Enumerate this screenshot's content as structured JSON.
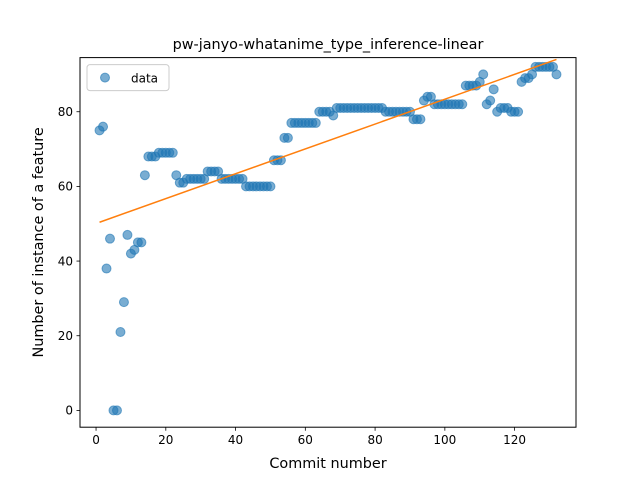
{
  "chart_data": {
    "type": "scatter",
    "title": "pw-janyo-whatanime_type_inference-linear",
    "xlabel": "Commit number",
    "ylabel": "Number of instance of a feature",
    "xlim": [
      -4.6,
      137.6
    ],
    "ylim": [
      -4.5,
      94.5
    ],
    "xticks": [
      "0",
      "20",
      "40",
      "60",
      "80",
      "100",
      "120"
    ],
    "xtick_values": [
      0,
      20,
      40,
      60,
      80,
      100,
      120
    ],
    "yticks": [
      "0",
      "20",
      "40",
      "60",
      "80"
    ],
    "ytick_values": [
      0,
      20,
      40,
      60,
      80
    ],
    "grid": false,
    "legend_position": "top-left",
    "series": [
      {
        "name": "data",
        "kind": "scatter",
        "color": "#1f77b4",
        "x": [
          1,
          2,
          3,
          4,
          5,
          6,
          7,
          8,
          9,
          10,
          11,
          12,
          13,
          14,
          15,
          16,
          17,
          18,
          19,
          20,
          21,
          22,
          23,
          24,
          25,
          26,
          27,
          28,
          29,
          30,
          31,
          32,
          33,
          34,
          35,
          36,
          37,
          38,
          39,
          40,
          41,
          42,
          43,
          44,
          45,
          46,
          47,
          48,
          49,
          50,
          51,
          52,
          53,
          54,
          55,
          56,
          57,
          58,
          59,
          60,
          61,
          62,
          63,
          64,
          65,
          66,
          67,
          68,
          69,
          70,
          71,
          72,
          73,
          74,
          75,
          76,
          77,
          78,
          79,
          80,
          81,
          82,
          83,
          84,
          85,
          86,
          87,
          88,
          89,
          90,
          91,
          92,
          93,
          94,
          95,
          96,
          97,
          98,
          99,
          100,
          101,
          102,
          103,
          104,
          105,
          106,
          107,
          108,
          109,
          110,
          111,
          112,
          113,
          114,
          115,
          116,
          117,
          118,
          119,
          120,
          121,
          122,
          123,
          124,
          125,
          126,
          127,
          128,
          129,
          130,
          131,
          132
        ],
        "y": [
          75,
          76,
          38,
          46,
          0,
          0,
          21,
          29,
          47,
          42,
          43,
          45,
          45,
          63,
          68,
          68,
          68,
          69,
          69,
          69,
          69,
          69,
          63,
          61,
          61,
          62,
          62,
          62,
          62,
          62,
          62,
          64,
          64,
          64,
          64,
          62,
          62,
          62,
          62,
          62,
          62,
          62,
          60,
          60,
          60,
          60,
          60,
          60,
          60,
          60,
          67,
          67,
          67,
          73,
          73,
          77,
          77,
          77,
          77,
          77,
          77,
          77,
          77,
          80,
          80,
          80,
          80,
          79,
          81,
          81,
          81,
          81,
          81,
          81,
          81,
          81,
          81,
          81,
          81,
          81,
          81,
          81,
          80,
          80,
          80,
          80,
          80,
          80,
          80,
          80,
          78,
          78,
          78,
          83,
          84,
          84,
          82,
          82,
          82,
          82,
          82,
          82,
          82,
          82,
          82,
          87,
          87,
          87,
          87,
          88,
          90,
          82,
          83,
          86,
          80,
          81,
          81,
          81,
          80,
          80,
          80,
          88,
          89,
          89,
          90,
          92,
          92,
          92,
          92,
          92,
          92,
          90
        ]
      },
      {
        "name": "",
        "kind": "line",
        "color": "#ff7f0e",
        "x": [
          1,
          132
        ],
        "y": [
          50.4,
          94.0
        ]
      }
    ]
  }
}
